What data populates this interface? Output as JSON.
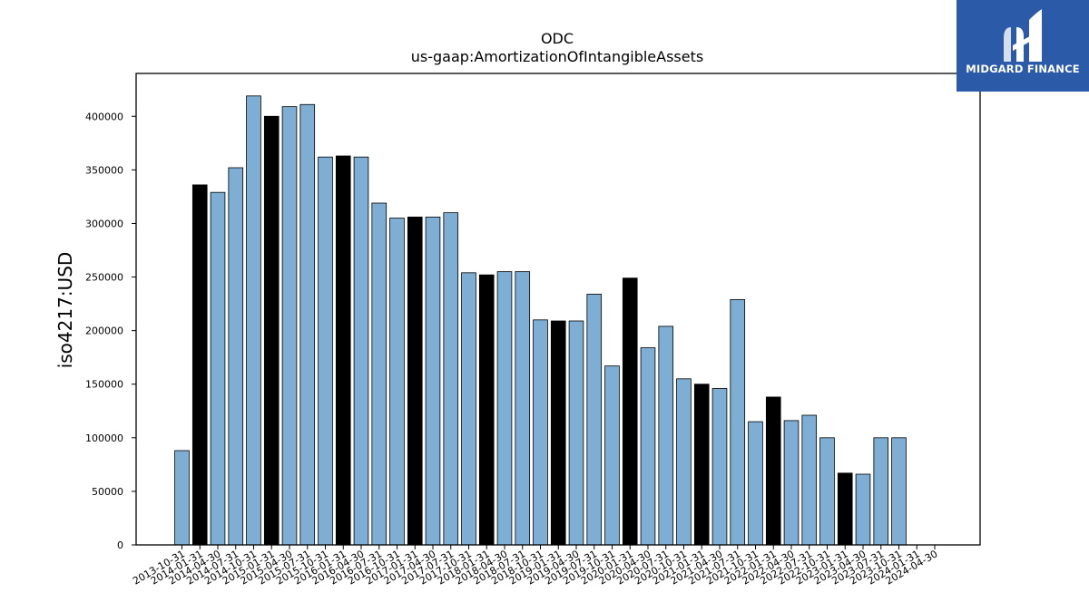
{
  "logo": {
    "text": "MIDGARD FINANCE"
  },
  "colors": {
    "bar_default": "#7eaed3",
    "bar_highlight": "#000000",
    "axis": "#000000",
    "logo_bg": "#2a5aa8"
  },
  "chart_data": {
    "type": "bar",
    "title": "ODC",
    "subtitle": "us-gaap:AmortizationOfIntangibleAssets",
    "xlabel": "",
    "ylabel": "iso4217:USD",
    "ylim": [
      0,
      440000
    ],
    "yticks": [
      0,
      50000,
      100000,
      150000,
      200000,
      250000,
      300000,
      350000,
      400000
    ],
    "grid": false,
    "categories": [
      "2013-10-31",
      "2014-01-31",
      "2014-04-30",
      "2014-07-31",
      "2014-10-31",
      "2015-01-31",
      "2015-04-30",
      "2015-07-31",
      "2015-10-31",
      "2016-01-31",
      "2016-04-30",
      "2016-07-31",
      "2016-10-31",
      "2017-01-31",
      "2017-04-30",
      "2017-07-31",
      "2017-10-31",
      "2018-01-31",
      "2018-04-30",
      "2018-07-31",
      "2018-10-31",
      "2019-01-31",
      "2019-04-30",
      "2019-07-31",
      "2019-10-31",
      "2020-01-31",
      "2020-04-30",
      "2020-07-31",
      "2020-10-31",
      "2021-01-31",
      "2021-04-30",
      "2021-07-31",
      "2021-10-31",
      "2022-01-31",
      "2022-04-30",
      "2022-07-31",
      "2022-10-31",
      "2023-01-31",
      "2023-04-30",
      "2023-07-31",
      "2023-10-31",
      "2024-01-31",
      "2024-04-30"
    ],
    "values": [
      88000,
      336000,
      329000,
      352000,
      419000,
      400000,
      409000,
      411000,
      362000,
      363000,
      362000,
      319000,
      305000,
      306000,
      306000,
      310000,
      254000,
      252000,
      255000,
      255000,
      210000,
      209000,
      209000,
      234000,
      167000,
      249000,
      184000,
      204000,
      155000,
      150000,
      146000,
      229000,
      115000,
      138000,
      116000,
      121000,
      100000,
      67000,
      66000,
      100000,
      100000,
      null,
      null
    ],
    "highlight": [
      false,
      true,
      false,
      false,
      false,
      true,
      false,
      false,
      false,
      true,
      false,
      false,
      false,
      true,
      false,
      false,
      false,
      true,
      false,
      false,
      false,
      true,
      false,
      false,
      false,
      true,
      false,
      false,
      false,
      true,
      false,
      false,
      false,
      true,
      false,
      false,
      false,
      true,
      false,
      false,
      false,
      false,
      false
    ]
  }
}
